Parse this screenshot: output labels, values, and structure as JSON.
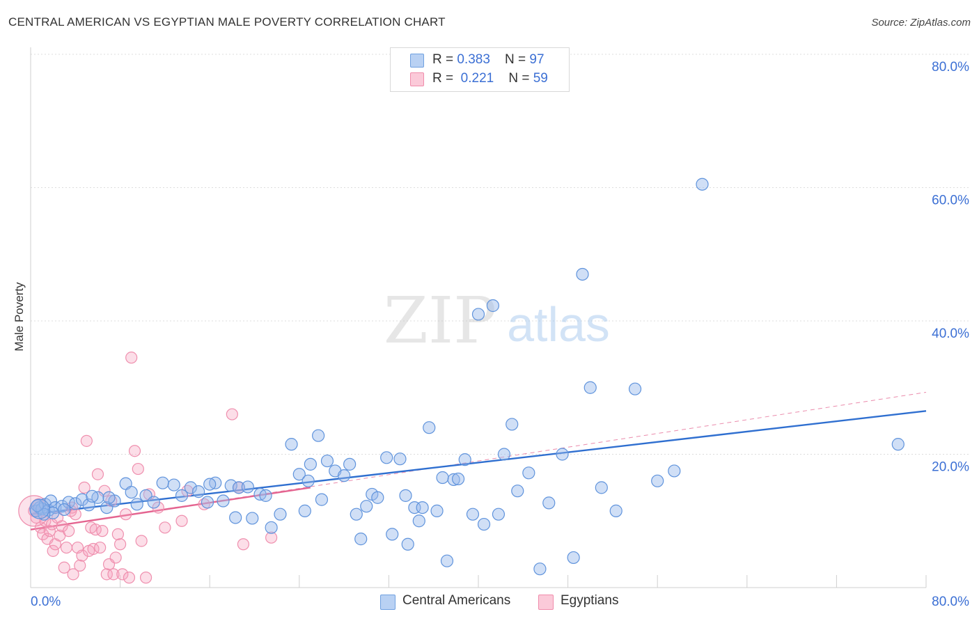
{
  "header": {
    "title": "CENTRAL AMERICAN VS EGYPTIAN MALE POVERTY CORRELATION CHART",
    "source": "Source: ZipAtlas.com"
  },
  "legend": {
    "row1": {
      "r_label": "R = ",
      "r_value": "0.383",
      "n_label": "N = ",
      "n_value": "97"
    },
    "row2": {
      "r_label": "R = ",
      "r_value": "0.221",
      "n_label": "N = ",
      "n_value": "59"
    }
  },
  "bottom_legend": {
    "series1": "Central Americans",
    "series2": "Egyptians"
  },
  "watermark": {
    "part1": "ZIP",
    "part2": "atlas"
  },
  "colors": {
    "blue": "#6fa0e0",
    "blue_line": "#2f6fd0",
    "pink": "#f08cab",
    "pink_line": "#e46490",
    "axis_text": "#3b6fd4"
  },
  "chart_data": {
    "type": "scatter",
    "title": "CENTRAL AMERICAN VS EGYPTIAN MALE POVERTY CORRELATION CHART",
    "xlabel": "",
    "ylabel": "Male Poverty",
    "xlim": [
      0,
      80
    ],
    "ylim": [
      0,
      80
    ],
    "x_tick_labels": [
      "0.0%",
      "80.0%"
    ],
    "y_tick_labels": [
      "20.0%",
      "40.0%",
      "60.0%",
      "80.0%"
    ],
    "y_ticks": [
      20,
      40,
      60,
      80
    ],
    "grid": true,
    "series": [
      {
        "name": "Central Americans",
        "color": "#6fa0e0",
        "trend": {
          "x": [
            0,
            80
          ],
          "y": [
            11.0,
            26.5
          ]
        },
        "points": [
          [
            0.5,
            11.5
          ],
          [
            0.8,
            12.0
          ],
          [
            1.0,
            11.8
          ],
          [
            1.3,
            12.5
          ],
          [
            1.6,
            11.6
          ],
          [
            1.8,
            13.0
          ],
          [
            2.2,
            12.0
          ],
          [
            2.8,
            12.2
          ],
          [
            3.4,
            12.8
          ],
          [
            4.0,
            12.6
          ],
          [
            4.6,
            13.2
          ],
          [
            5.2,
            12.4
          ],
          [
            6.0,
            13.5
          ],
          [
            6.8,
            12.0
          ],
          [
            7.5,
            13.0
          ],
          [
            8.5,
            15.6
          ],
          [
            9.0,
            14.3
          ],
          [
            9.5,
            12.5
          ],
          [
            10.3,
            13.8
          ],
          [
            11.8,
            15.7
          ],
          [
            12.8,
            15.4
          ],
          [
            14.3,
            15.0
          ],
          [
            15.0,
            14.4
          ],
          [
            15.8,
            12.8
          ],
          [
            16.5,
            15.7
          ],
          [
            17.2,
            13.0
          ],
          [
            17.9,
            15.3
          ],
          [
            18.6,
            15.0
          ],
          [
            19.4,
            15.1
          ],
          [
            18.3,
            10.5
          ],
          [
            19.8,
            10.4
          ],
          [
            20.5,
            14.0
          ],
          [
            21.5,
            9.0
          ],
          [
            22.3,
            11.0
          ],
          [
            23.3,
            21.5
          ],
          [
            24.0,
            17.0
          ],
          [
            24.5,
            11.5
          ],
          [
            25.0,
            18.5
          ],
          [
            25.7,
            22.8
          ],
          [
            26.5,
            19.0
          ],
          [
            27.2,
            17.5
          ],
          [
            28.0,
            16.8
          ],
          [
            28.5,
            18.5
          ],
          [
            29.1,
            11.0
          ],
          [
            29.5,
            7.3
          ],
          [
            30.0,
            12.2
          ],
          [
            30.5,
            14.0
          ],
          [
            31.0,
            13.5
          ],
          [
            31.8,
            19.5
          ],
          [
            32.3,
            8.0
          ],
          [
            33.0,
            19.3
          ],
          [
            33.7,
            6.5
          ],
          [
            34.3,
            12.0
          ],
          [
            34.7,
            10.0
          ],
          [
            35.0,
            12.0
          ],
          [
            35.6,
            24.0
          ],
          [
            36.3,
            11.5
          ],
          [
            36.8,
            16.5
          ],
          [
            37.2,
            4.0
          ],
          [
            37.8,
            16.2
          ],
          [
            38.2,
            16.3
          ],
          [
            38.8,
            19.2
          ],
          [
            39.5,
            11.0
          ],
          [
            40.0,
            41.0
          ],
          [
            40.5,
            9.5
          ],
          [
            41.3,
            42.3
          ],
          [
            41.8,
            11.0
          ],
          [
            42.3,
            20.0
          ],
          [
            43.0,
            24.5
          ],
          [
            43.5,
            14.5
          ],
          [
            44.5,
            17.2
          ],
          [
            45.5,
            2.8
          ],
          [
            46.3,
            12.7
          ],
          [
            47.5,
            20.0
          ],
          [
            48.5,
            4.5
          ],
          [
            49.3,
            47.0
          ],
          [
            50.0,
            30.0
          ],
          [
            51.0,
            15.0
          ],
          [
            52.3,
            11.5
          ],
          [
            54.0,
            29.8
          ],
          [
            56.0,
            16.0
          ],
          [
            57.5,
            17.5
          ],
          [
            60.0,
            60.5
          ],
          [
            77.5,
            21.5
          ],
          [
            2.0,
            11.2
          ],
          [
            3.0,
            11.7
          ],
          [
            1.2,
            11.0
          ],
          [
            0.6,
            12.3
          ],
          [
            5.5,
            13.7
          ],
          [
            7.0,
            13.5
          ],
          [
            11.0,
            12.8
          ],
          [
            13.5,
            13.8
          ],
          [
            16.0,
            15.5
          ],
          [
            21.0,
            13.8
          ],
          [
            26.0,
            13.2
          ],
          [
            33.5,
            13.8
          ],
          [
            24.8,
            16.0
          ]
        ]
      },
      {
        "name": "Egyptians",
        "color": "#f08cab",
        "trend": {
          "x": [
            0,
            25
          ],
          "y": [
            8.7,
            15.0
          ]
        },
        "trend_dashed": {
          "x": [
            0,
            80
          ],
          "y": [
            8.7,
            29.3
          ]
        },
        "points": [
          [
            0.3,
            11.5
          ],
          [
            0.5,
            10.5
          ],
          [
            0.7,
            12.5
          ],
          [
            0.9,
            9.0
          ],
          [
            1.1,
            8.0
          ],
          [
            1.3,
            10.0
          ],
          [
            1.5,
            7.3
          ],
          [
            1.7,
            8.5
          ],
          [
            1.9,
            9.5
          ],
          [
            2.0,
            5.5
          ],
          [
            2.2,
            6.5
          ],
          [
            2.4,
            10.5
          ],
          [
            2.6,
            7.8
          ],
          [
            2.8,
            9.2
          ],
          [
            3.0,
            3.0
          ],
          [
            3.2,
            6.0
          ],
          [
            3.4,
            8.5
          ],
          [
            3.6,
            11.5
          ],
          [
            3.7,
            12.0
          ],
          [
            3.8,
            2.0
          ],
          [
            4.0,
            11.0
          ],
          [
            4.2,
            6.0
          ],
          [
            4.4,
            3.3
          ],
          [
            4.6,
            4.8
          ],
          [
            4.8,
            15.0
          ],
          [
            5.0,
            22.0
          ],
          [
            5.2,
            5.5
          ],
          [
            5.4,
            9.0
          ],
          [
            5.6,
            5.8
          ],
          [
            5.8,
            8.7
          ],
          [
            6.0,
            17.0
          ],
          [
            6.2,
            6.0
          ],
          [
            6.4,
            8.5
          ],
          [
            6.6,
            14.5
          ],
          [
            6.8,
            2.0
          ],
          [
            7.0,
            3.5
          ],
          [
            7.2,
            13.0
          ],
          [
            7.4,
            2.0
          ],
          [
            7.6,
            4.5
          ],
          [
            7.8,
            8.0
          ],
          [
            8.0,
            6.5
          ],
          [
            8.2,
            2.0
          ],
          [
            8.5,
            11.0
          ],
          [
            8.8,
            1.5
          ],
          [
            9.0,
            34.5
          ],
          [
            9.3,
            20.5
          ],
          [
            9.6,
            17.8
          ],
          [
            9.9,
            7.0
          ],
          [
            10.3,
            1.5
          ],
          [
            10.6,
            14.0
          ],
          [
            11.4,
            12.0
          ],
          [
            12.0,
            9.0
          ],
          [
            13.5,
            10.0
          ],
          [
            14.0,
            14.5
          ],
          [
            15.5,
            12.5
          ],
          [
            18.0,
            26.0
          ],
          [
            18.6,
            15.0
          ],
          [
            19.0,
            6.5
          ],
          [
            21.5,
            7.5
          ]
        ]
      }
    ]
  }
}
